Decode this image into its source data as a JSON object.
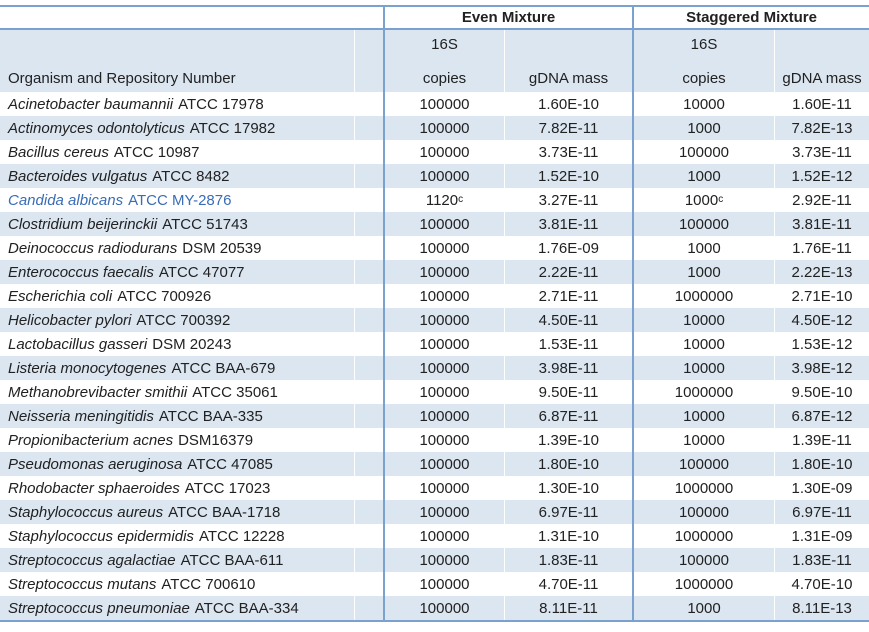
{
  "colors": {
    "band": "#dce6f1",
    "border": "#7ba2ce",
    "hl": "#3a6db5",
    "text": "#212121"
  },
  "table": {
    "organism_header": "Organism and Repository Number",
    "column_groups": [
      {
        "label": "Even Mixture"
      },
      {
        "label": "Staggered Mixture"
      }
    ],
    "sub_columns": {
      "copies_top": "16S",
      "copies_bottom": "copies",
      "mass": "gDNA mass"
    },
    "rows": [
      {
        "organism": "Acinetobacter baumannii",
        "repository": "ATCC 17978",
        "even_16s_copies": "100000",
        "even_copies_note": "",
        "even_gdna_mass": "1.60E-10",
        "staggered_16s_copies": "10000",
        "staggered_copies_note": "",
        "staggered_gdna_mass": "1.60E-11",
        "highlighted": false
      },
      {
        "organism": "Actinomyces odontolyticus",
        "repository": "ATCC 17982",
        "even_16s_copies": "100000",
        "even_copies_note": "",
        "even_gdna_mass": "7.82E-11",
        "staggered_16s_copies": "1000",
        "staggered_copies_note": "",
        "staggered_gdna_mass": "7.82E-13",
        "highlighted": false
      },
      {
        "organism": "Bacillus cereus",
        "repository": "ATCC 10987",
        "even_16s_copies": "100000",
        "even_copies_note": "",
        "even_gdna_mass": "3.73E-11",
        "staggered_16s_copies": "100000",
        "staggered_copies_note": "",
        "staggered_gdna_mass": "3.73E-11",
        "highlighted": false
      },
      {
        "organism": "Bacteroides vulgatus",
        "repository": "ATCC 8482",
        "even_16s_copies": "100000",
        "even_copies_note": "",
        "even_gdna_mass": "1.52E-10",
        "staggered_16s_copies": "1000",
        "staggered_copies_note": "",
        "staggered_gdna_mass": "1.52E-12",
        "highlighted": false
      },
      {
        "organism": "Candida albicans",
        "repository": "ATCC MY-2876",
        "even_16s_copies": "1120",
        "even_copies_note": "c",
        "even_gdna_mass": "3.27E-11",
        "staggered_16s_copies": "1000",
        "staggered_copies_note": "c",
        "staggered_gdna_mass": "2.92E-11",
        "highlighted": true
      },
      {
        "organism": "Clostridium beijerinckii",
        "repository": "ATCC 51743",
        "even_16s_copies": "100000",
        "even_copies_note": "",
        "even_gdna_mass": "3.81E-11",
        "staggered_16s_copies": "100000",
        "staggered_copies_note": "",
        "staggered_gdna_mass": "3.81E-11",
        "highlighted": false
      },
      {
        "organism": "Deinococcus radiodurans",
        "repository": "DSM 20539",
        "even_16s_copies": "100000",
        "even_copies_note": "",
        "even_gdna_mass": "1.76E-09",
        "staggered_16s_copies": "1000",
        "staggered_copies_note": "",
        "staggered_gdna_mass": "1.76E-11",
        "highlighted": false
      },
      {
        "organism": "Enterococcus faecalis",
        "repository": "ATCC 47077",
        "even_16s_copies": "100000",
        "even_copies_note": "",
        "even_gdna_mass": "2.22E-11",
        "staggered_16s_copies": "1000",
        "staggered_copies_note": "",
        "staggered_gdna_mass": "2.22E-13",
        "highlighted": false
      },
      {
        "organism": "Escherichia coli",
        "repository": "ATCC 700926",
        "even_16s_copies": "100000",
        "even_copies_note": "",
        "even_gdna_mass": "2.71E-11",
        "staggered_16s_copies": "1000000",
        "staggered_copies_note": "",
        "staggered_gdna_mass": "2.71E-10",
        "highlighted": false
      },
      {
        "organism": "Helicobacter pylori",
        "repository": "ATCC 700392",
        "even_16s_copies": "100000",
        "even_copies_note": "",
        "even_gdna_mass": "4.50E-11",
        "staggered_16s_copies": "10000",
        "staggered_copies_note": "",
        "staggered_gdna_mass": "4.50E-12",
        "highlighted": false
      },
      {
        "organism": "Lactobacillus gasseri",
        "repository": "DSM 20243",
        "even_16s_copies": "100000",
        "even_copies_note": "",
        "even_gdna_mass": "1.53E-11",
        "staggered_16s_copies": "10000",
        "staggered_copies_note": "",
        "staggered_gdna_mass": "1.53E-12",
        "highlighted": false
      },
      {
        "organism": "Listeria monocytogenes",
        "repository": "ATCC BAA-679",
        "even_16s_copies": "100000",
        "even_copies_note": "",
        "even_gdna_mass": "3.98E-11",
        "staggered_16s_copies": "10000",
        "staggered_copies_note": "",
        "staggered_gdna_mass": "3.98E-12",
        "highlighted": false
      },
      {
        "organism": "Methanobrevibacter smithii",
        "repository": "ATCC 35061",
        "even_16s_copies": "100000",
        "even_copies_note": "",
        "even_gdna_mass": "9.50E-11",
        "staggered_16s_copies": "1000000",
        "staggered_copies_note": "",
        "staggered_gdna_mass": "9.50E-10",
        "highlighted": false
      },
      {
        "organism": "Neisseria meningitidis",
        "repository": "ATCC BAA-335",
        "even_16s_copies": "100000",
        "even_copies_note": "",
        "even_gdna_mass": "6.87E-11",
        "staggered_16s_copies": "10000",
        "staggered_copies_note": "",
        "staggered_gdna_mass": "6.87E-12",
        "highlighted": false
      },
      {
        "organism": "Propionibacterium acnes",
        "repository": "DSM16379",
        "even_16s_copies": "100000",
        "even_copies_note": "",
        "even_gdna_mass": "1.39E-10",
        "staggered_16s_copies": "10000",
        "staggered_copies_note": "",
        "staggered_gdna_mass": "1.39E-11",
        "highlighted": false
      },
      {
        "organism": "Pseudomonas aeruginosa",
        "repository": "ATCC 47085",
        "even_16s_copies": "100000",
        "even_copies_note": "",
        "even_gdna_mass": "1.80E-10",
        "staggered_16s_copies": "100000",
        "staggered_copies_note": "",
        "staggered_gdna_mass": "1.80E-10",
        "highlighted": false
      },
      {
        "organism": "Rhodobacter sphaeroides",
        "repository": "ATCC 17023",
        "even_16s_copies": "100000",
        "even_copies_note": "",
        "even_gdna_mass": "1.30E-10",
        "staggered_16s_copies": "1000000",
        "staggered_copies_note": "",
        "staggered_gdna_mass": "1.30E-09",
        "highlighted": false
      },
      {
        "organism": "Staphylococcus aureus",
        "repository": "ATCC BAA-1718",
        "even_16s_copies": "100000",
        "even_copies_note": "",
        "even_gdna_mass": "6.97E-11",
        "staggered_16s_copies": "100000",
        "staggered_copies_note": "",
        "staggered_gdna_mass": "6.97E-11",
        "highlighted": false
      },
      {
        "organism": "Staphylococcus epidermidis",
        "repository": "ATCC 12228",
        "even_16s_copies": "100000",
        "even_copies_note": "",
        "even_gdna_mass": "1.31E-10",
        "staggered_16s_copies": "1000000",
        "staggered_copies_note": "",
        "staggered_gdna_mass": "1.31E-09",
        "highlighted": false
      },
      {
        "organism": "Streptococcus agalactiae",
        "repository": "ATCC BAA-611",
        "even_16s_copies": "100000",
        "even_copies_note": "",
        "even_gdna_mass": "1.83E-11",
        "staggered_16s_copies": "100000",
        "staggered_copies_note": "",
        "staggered_gdna_mass": "1.83E-11",
        "highlighted": false
      },
      {
        "organism": "Streptococcus mutans",
        "repository": "ATCC 700610",
        "even_16s_copies": "100000",
        "even_copies_note": "",
        "even_gdna_mass": "4.70E-11",
        "staggered_16s_copies": "1000000",
        "staggered_copies_note": "",
        "staggered_gdna_mass": "4.70E-10",
        "highlighted": false
      },
      {
        "organism": "Streptococcus pneumoniae",
        "repository": "ATCC BAA-334",
        "even_16s_copies": "100000",
        "even_copies_note": "",
        "even_gdna_mass": "8.11E-11",
        "staggered_16s_copies": "1000",
        "staggered_copies_note": "",
        "staggered_gdna_mass": "8.11E-13",
        "highlighted": false
      }
    ]
  }
}
